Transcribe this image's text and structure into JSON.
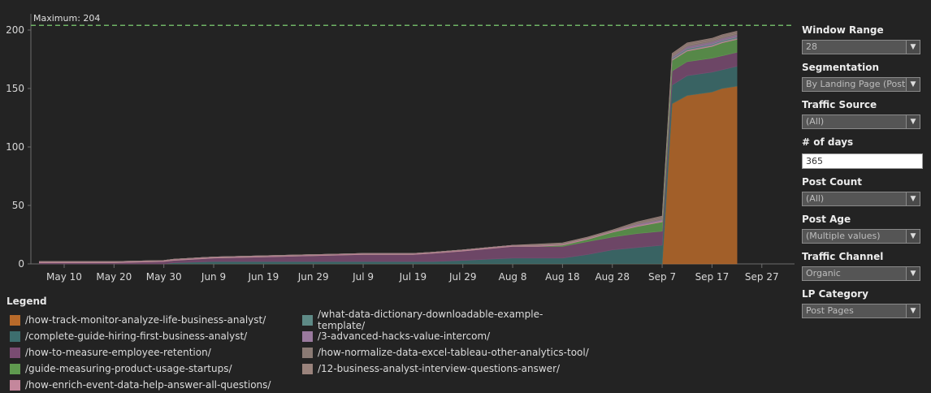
{
  "chart_data": {
    "type": "area",
    "stacked": true,
    "x": [
      "May 5",
      "May 10",
      "May 20",
      "May 30",
      "Jun 1",
      "Jun 9",
      "Jun 19",
      "Jun 29",
      "Jul 9",
      "Jul 19",
      "Jul 23",
      "Jul 29",
      "Aug 3",
      "Aug 8",
      "Aug 13",
      "Aug 18",
      "Aug 23",
      "Aug 28",
      "Sep 2",
      "Sep 7",
      "Sep 9",
      "Sep 12",
      "Sep 17",
      "Sep 19",
      "Sep 22"
    ],
    "x_ticks": [
      "May 10",
      "May 20",
      "May 30",
      "Jun 9",
      "Jun 19",
      "Jun 29",
      "Jul 9",
      "Jul 19",
      "Jul 29",
      "Aug 8",
      "Aug 18",
      "Aug 28",
      "Sep 7",
      "Sep 17",
      "Sep 27"
    ],
    "y_ticks": [
      "0",
      "50",
      "100",
      "150",
      "200"
    ],
    "ylim": [
      0,
      215
    ],
    "grid": false,
    "reference_line": {
      "label": "Maximum: 204",
      "value": 204,
      "color": "#6fb365"
    },
    "series": [
      {
        "name": "/how-track-monitor-analyze-life-business-analyst/",
        "color": "#b86a2a",
        "values": [
          0,
          0,
          0,
          0,
          0,
          0,
          0,
          0,
          0,
          0,
          0,
          0,
          0,
          0,
          0,
          0,
          0,
          0,
          0,
          0,
          137,
          144,
          147,
          150,
          152
        ]
      },
      {
        "name": "/complete-guide-hiring-first-business-analyst/",
        "color": "#3d6e6e",
        "values": [
          0,
          0,
          0,
          0,
          1,
          2,
          2,
          2,
          2,
          2,
          2,
          3,
          4,
          5,
          5,
          5,
          8,
          12,
          14,
          16,
          16,
          17,
          17,
          16,
          17
        ]
      },
      {
        "name": "/how-to-measure-employee-retention/",
        "color": "#7a4c72",
        "values": [
          1,
          1,
          1,
          2,
          2,
          3,
          4,
          5,
          6,
          6,
          7,
          8,
          9,
          10,
          10,
          10,
          11,
          11,
          12,
          12,
          12,
          12,
          12,
          12,
          12
        ]
      },
      {
        "name": "/guide-measuring-product-usage-startups/",
        "color": "#5f9a4f",
        "values": [
          0,
          0,
          0,
          0,
          0,
          0,
          0,
          0,
          0,
          0,
          0,
          0,
          0,
          0,
          0,
          1,
          2,
          4,
          6,
          8,
          9,
          9,
          10,
          11,
          11
        ]
      },
      {
        "name": "/how-enrich-event-data-help-answer-all-questions/",
        "color": "#c4879c",
        "values": [
          1,
          1,
          1,
          1,
          1,
          1,
          1,
          1,
          1,
          1,
          1,
          1,
          1,
          1,
          1,
          1,
          1,
          1,
          1,
          1,
          1,
          1,
          1,
          1,
          1
        ]
      },
      {
        "name": "/what-data-dictionary-downloadable-example-template/",
        "color": "#5e8a86",
        "values": [
          0,
          0,
          0,
          0,
          0,
          0,
          0,
          0,
          0,
          0,
          0,
          0,
          0,
          0,
          0,
          0,
          0,
          0,
          0,
          0,
          1,
          1,
          1,
          1,
          1
        ]
      },
      {
        "name": "/3-advanced-hacks-value-intercom/",
        "color": "#9a7a9e",
        "values": [
          0,
          0,
          0,
          0,
          0,
          0,
          0,
          0,
          0,
          0,
          0,
          0,
          0,
          0,
          0,
          0,
          0,
          0,
          1,
          1,
          1,
          2,
          2,
          2,
          2
        ]
      },
      {
        "name": "/how-normalize-data-excel-tableau-other-analytics-tool/",
        "color": "#8a7a74",
        "values": [
          0,
          0,
          0,
          0,
          0,
          0,
          0,
          0,
          0,
          0,
          0,
          0,
          0,
          0,
          0,
          0,
          0,
          0,
          0,
          1,
          1,
          1,
          1,
          1,
          1
        ]
      },
      {
        "name": "/12-business-analyst-interview-questions-answer/",
        "color": "#9a837c",
        "values": [
          0,
          0,
          0,
          0,
          0,
          0,
          0,
          0,
          0,
          0,
          0,
          0,
          0,
          0,
          1,
          1,
          1,
          1,
          2,
          2,
          2,
          2,
          2,
          2,
          2
        ]
      }
    ]
  },
  "legend": {
    "title": "Legend"
  },
  "filters": {
    "window_range": {
      "label": "Window Range",
      "value": "28"
    },
    "segmentation": {
      "label": "Segmentation",
      "value": "By Landing Page (Post)"
    },
    "traffic_source": {
      "label": "Traffic Source",
      "value": "(All)"
    },
    "num_days": {
      "label": "# of days",
      "value": "365"
    },
    "post_count": {
      "label": "Post Count",
      "value": "(All)"
    },
    "post_age": {
      "label": "Post Age",
      "value": "(Multiple values)"
    },
    "traffic_channel": {
      "label": "Traffic Channel",
      "value": "Organic"
    },
    "lp_category": {
      "label": "LP Category",
      "value": "Post Pages"
    }
  },
  "icons": {
    "dropdown_arrow": "chevron-down-icon"
  }
}
